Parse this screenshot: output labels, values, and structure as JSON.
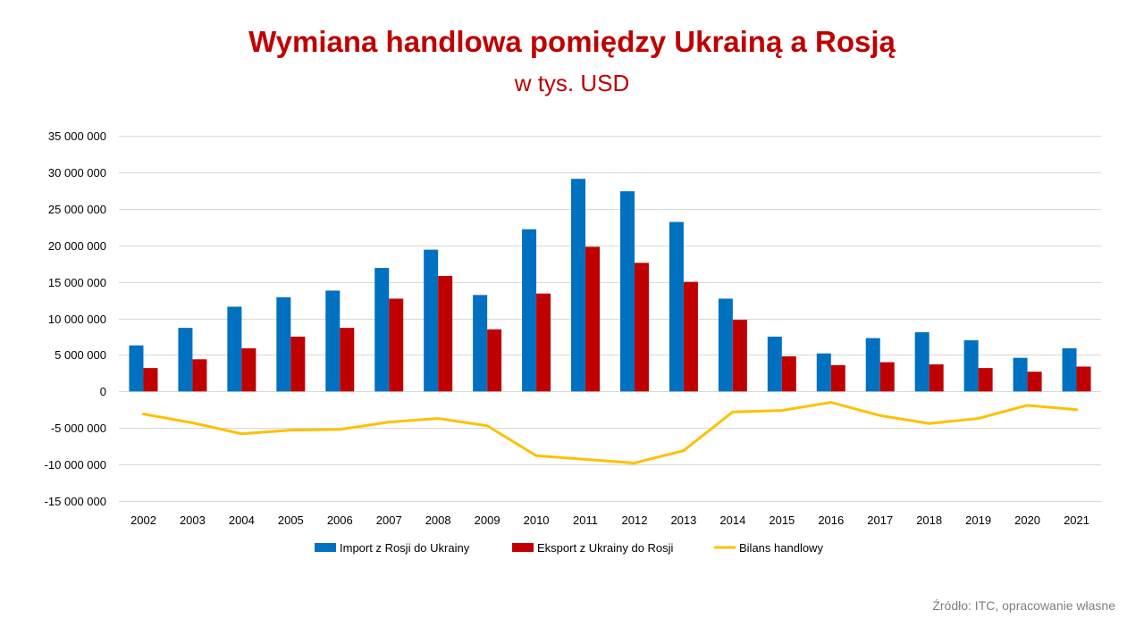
{
  "chart_data": {
    "type": "bar",
    "title": "Wymiana handlowa pomiędzy Ukrainą a Rosją",
    "subtitle": "w tys. USD",
    "categories": [
      "2002",
      "2003",
      "2004",
      "2005",
      "2006",
      "2007",
      "2008",
      "2009",
      "2010",
      "2011",
      "2012",
      "2013",
      "2014",
      "2015",
      "2016",
      "2017",
      "2018",
      "2019",
      "2020",
      "2021"
    ],
    "ylim": [
      -15000000,
      35000000
    ],
    "yticks": [
      35000000,
      30000000,
      25000000,
      20000000,
      15000000,
      10000000,
      5000000,
      0,
      -5000000,
      -10000000,
      -15000000
    ],
    "ytick_labels": [
      "35 000 000",
      "30 000 000",
      "25 000 000",
      "20 000 000",
      "15 000 000",
      "10 000 000",
      "5 000 000",
      "0",
      "-5 000 000",
      "-10 000 000",
      "-15 000 000"
    ],
    "grid": true,
    "legend_position": "bottom",
    "series": [
      {
        "name": "Import z Rosji do Ukrainy",
        "type": "bar",
        "color": "#0070c0",
        "values": [
          6300000,
          8700000,
          11600000,
          12900000,
          13800000,
          16900000,
          19400000,
          13200000,
          22200000,
          29100000,
          27400000,
          23200000,
          12700000,
          7500000,
          5200000,
          7300000,
          8100000,
          7000000,
          4600000,
          5900000
        ]
      },
      {
        "name": "Eksport z Ukrainy do Rosji",
        "type": "bar",
        "color": "#c00000",
        "values": [
          3200000,
          4400000,
          5900000,
          7500000,
          8700000,
          12700000,
          15800000,
          8500000,
          13400000,
          19800000,
          17600000,
          15000000,
          9800000,
          4800000,
          3600000,
          4000000,
          3700000,
          3200000,
          2700000,
          3400000
        ]
      },
      {
        "name": "Bilans handlowy",
        "type": "line",
        "color": "#ffc000",
        "values": [
          -3100000,
          -4300000,
          -5800000,
          -5300000,
          -5200000,
          -4200000,
          -3700000,
          -4700000,
          -8800000,
          -9300000,
          -9800000,
          -8100000,
          -2800000,
          -2600000,
          -1500000,
          -3300000,
          -4400000,
          -3700000,
          -1900000,
          -2500000
        ]
      }
    ]
  },
  "source": "Źródło: ITC, opracowanie własne"
}
